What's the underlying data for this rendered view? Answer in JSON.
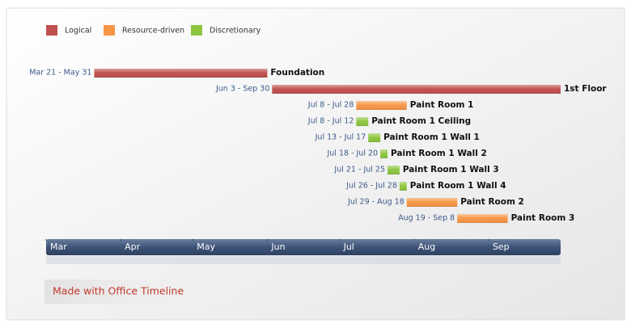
{
  "chart_data": {
    "type": "gantt",
    "series": [
      {
        "name": "Logical",
        "color": "#c0504d"
      },
      {
        "name": "Resource-driven",
        "color": "#f79646"
      },
      {
        "name": "Discretionary",
        "color": "#8dc63f"
      }
    ],
    "tasks": [
      {
        "name": "Foundation",
        "dates": "Mar 21 - May 31",
        "series": 0,
        "start": 80,
        "end": 151
      },
      {
        "name": "1st Floor",
        "dates": "Jun 3 - Sep 30",
        "series": 0,
        "start": 154,
        "end": 273
      },
      {
        "name": "Paint Room 1",
        "dates": "Jul 8 - Jul 28",
        "series": 1,
        "start": 189,
        "end": 209
      },
      {
        "name": "Paint Room 1 Ceiling",
        "dates": "Jul 8 - Jul 12",
        "series": 2,
        "start": 189,
        "end": 193
      },
      {
        "name": "Paint Room 1 Wall 1",
        "dates": "Jul 13 - Jul 17",
        "series": 2,
        "start": 194,
        "end": 198
      },
      {
        "name": "Paint Room 1 Wall 2",
        "dates": "Jul 18 - Jul 20",
        "series": 2,
        "start": 199,
        "end": 201
      },
      {
        "name": "Paint Room 1 Wall 3",
        "dates": "Jul 21 - Jul 25",
        "series": 2,
        "start": 202,
        "end": 206
      },
      {
        "name": "Paint Room 1 Wall 4",
        "dates": "Jul 26 - Jul 28",
        "series": 2,
        "start": 207,
        "end": 209
      },
      {
        "name": "Paint Room 2",
        "dates": "Jul 29 - Aug 18",
        "series": 1,
        "start": 210,
        "end": 230
      },
      {
        "name": "Paint Room 3",
        "dates": "Aug 19 - Sep 8",
        "series": 1,
        "start": 231,
        "end": 251
      }
    ],
    "xlim": [
      60,
      274
    ],
    "xticks": [
      {
        "value": 60,
        "label": "Mar"
      },
      {
        "value": 91,
        "label": "Apr"
      },
      {
        "value": 121,
        "label": "May"
      },
      {
        "value": 152,
        "label": "Jun"
      },
      {
        "value": 182,
        "label": "Jul"
      },
      {
        "value": 213,
        "label": "Aug"
      },
      {
        "value": 244,
        "label": "Sep"
      }
    ],
    "footer": "Made with Office Timeline"
  }
}
